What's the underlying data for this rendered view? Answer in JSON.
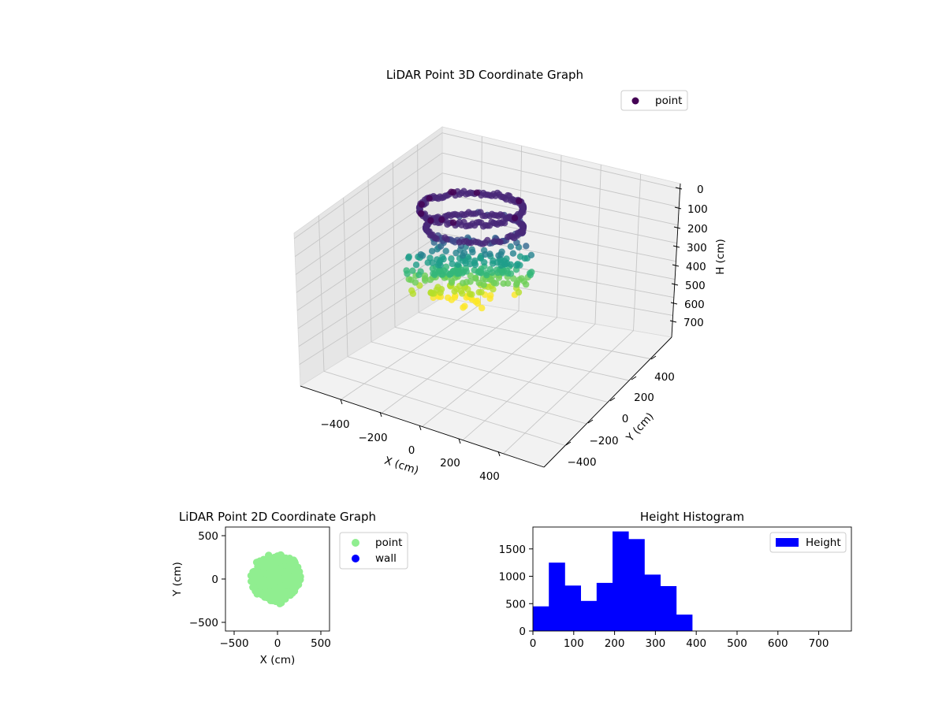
{
  "colors": {
    "point3d_legend": "#440154",
    "viridis": [
      "#440154",
      "#482878",
      "#3e4989",
      "#31688e",
      "#26828e",
      "#1f9e89",
      "#35b779",
      "#6ece58",
      "#b5de2b",
      "#fde725"
    ],
    "point2d": "#90ee90",
    "wall": "#0000ff",
    "histogram": "#0000ff"
  },
  "chart_data": [
    {
      "type": "scatter3d",
      "title": "LiDAR Point 3D Coordinate Graph",
      "xlabel": "X (cm)",
      "ylabel": "Y (cm)",
      "zlabel": "H (cm)",
      "x_ticks": [
        "−400",
        "−200",
        "0",
        "200",
        "400"
      ],
      "y_ticks": [
        "400",
        "200",
        "0",
        "−200",
        "−400"
      ],
      "z_ticks": [
        "0",
        "100",
        "200",
        "300",
        "400",
        "500",
        "600",
        "700"
      ],
      "xlim": [
        -550,
        550
      ],
      "ylim": [
        -550,
        550
      ],
      "zlim": [
        0,
        750
      ],
      "z_inverted": true,
      "grid": true,
      "legend": [
        "point"
      ],
      "legend_position": "top-right",
      "colormap": "viridis"
    },
    {
      "type": "scatter",
      "title": "LiDAR Point 2D Coordinate Graph",
      "xlabel": "X (cm)",
      "ylabel": "Y (cm)",
      "x_ticks": [
        "−500",
        "0",
        "500"
      ],
      "y_ticks": [
        "500",
        "0",
        "−500"
      ],
      "xlim": [
        -600,
        600
      ],
      "ylim": [
        -600,
        600
      ],
      "series": [
        {
          "name": "point",
          "color": "#90ee90",
          "x_range": [
            -330,
            290
          ],
          "y_range": [
            -300,
            310
          ]
        },
        {
          "name": "wall",
          "color": "#0000ff",
          "x_range": [],
          "y_range": []
        }
      ],
      "legend_position": "outside-right"
    },
    {
      "type": "bar",
      "title": "Height Histogram",
      "bin_width": 39,
      "bin_starts": [
        0,
        39,
        78,
        117,
        156,
        195,
        234,
        273,
        312,
        351
      ],
      "values": [
        450,
        1250,
        830,
        550,
        880,
        1820,
        1680,
        1030,
        820,
        300
      ],
      "x_ticks": [
        "0",
        "100",
        "200",
        "300",
        "400",
        "500",
        "600",
        "700"
      ],
      "y_ticks": [
        "0",
        "500",
        "1000",
        "1500"
      ],
      "xlim": [
        0,
        780
      ],
      "ylim": [
        0,
        1900
      ],
      "legend": [
        "Height"
      ],
      "legend_position": "top-right"
    }
  ]
}
